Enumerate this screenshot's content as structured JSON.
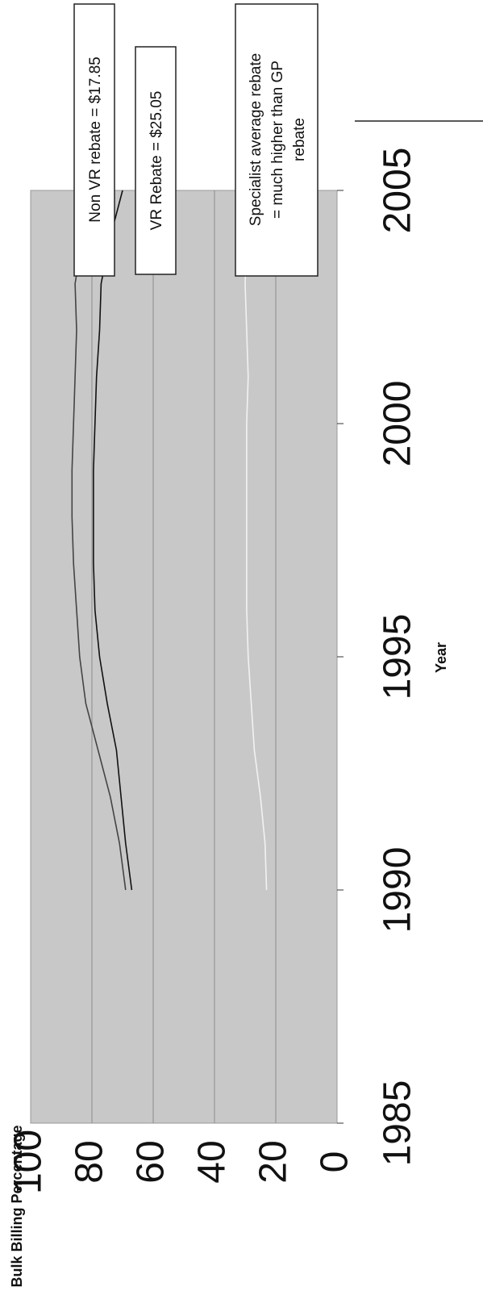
{
  "chart_data": {
    "type": "line",
    "xlabel": "Year",
    "ylabel": "Bulk Billing Percentage",
    "xlim": [
      1985,
      2005
    ],
    "ylim": [
      0,
      100
    ],
    "x_ticks": [
      "1985",
      "1990",
      "1995",
      "2000",
      "2005"
    ],
    "y_ticks": [
      "0",
      "20",
      "40",
      "60",
      "80",
      "100"
    ],
    "grid": "horizontal",
    "plot_background": "#c8c8c8",
    "series": [
      {
        "color": "#444444",
        "x": [
          1990,
          1991,
          1992,
          1993,
          1994,
          1995,
          1996,
          1997,
          1998,
          1999,
          2000,
          2001,
          2002,
          2003,
          2004,
          2005
        ],
        "values": [
          69,
          71,
          74,
          78,
          82,
          84,
          85,
          86,
          86.5,
          86.5,
          86,
          85.5,
          85,
          85.5,
          83,
          79
        ]
      },
      {
        "color": "#111111",
        "x": [
          1990,
          1991,
          1992,
          1993,
          1994,
          1995,
          1996,
          1997,
          1998,
          1999,
          2000,
          2001,
          2002,
          2003,
          2004,
          2005
        ],
        "values": [
          67,
          69,
          70.5,
          72,
          75,
          77.5,
          79,
          79.5,
          79.5,
          79.5,
          79,
          78.5,
          77.5,
          77,
          74,
          70
        ]
      },
      {
        "color": "#f2f2f2",
        "x": [
          1990,
          1991,
          1992,
          1993,
          1994,
          1995,
          1996,
          1997,
          1998,
          1999,
          2000,
          2001,
          2002,
          2003,
          2004,
          2005
        ],
        "values": [
          23,
          23.5,
          25,
          27,
          28,
          29,
          29.5,
          29.5,
          29.5,
          29.5,
          29.5,
          29,
          29.5,
          30,
          29.5,
          25
        ]
      }
    ],
    "annotations": [
      {
        "lines": [
          "Non VR rebate = $17.85"
        ]
      },
      {
        "lines": [
          "VR Rebate = $25.05"
        ]
      },
      {
        "lines": [
          "Specialist average rebate",
          "= much higher than GP",
          "rebate"
        ]
      }
    ]
  }
}
